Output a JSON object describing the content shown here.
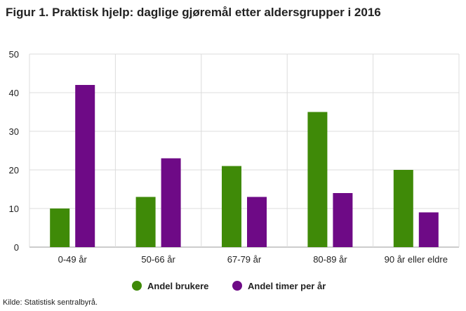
{
  "title": "Figur 1. Praktisk hjelp: daglige gjøremål etter aldersgrupper i 2016",
  "source": "Kilde: Statistisk sentralbyrå.",
  "chart_data": {
    "type": "bar",
    "categories": [
      "0-49 år",
      "50-66 år",
      "67-79 år",
      "80-89 år",
      "90 år eller eldre"
    ],
    "series": [
      {
        "name": "Andel brukere",
        "values": [
          10,
          13,
          21,
          35,
          20
        ],
        "color": "#3f8a08"
      },
      {
        "name": "Andel timer per år",
        "values": [
          42,
          23,
          13,
          14,
          9
        ],
        "color": "#6e0a86"
      }
    ],
    "title": "Figur 1. Praktisk hjelp: daglige gjøremål etter aldersgrupper i 2016",
    "xlabel": "",
    "ylabel": "",
    "ylim": [
      0,
      50
    ],
    "yticks": [
      "0",
      "10",
      "20",
      "30",
      "40",
      "50"
    ],
    "grid": true,
    "legend": "bottom-center"
  }
}
